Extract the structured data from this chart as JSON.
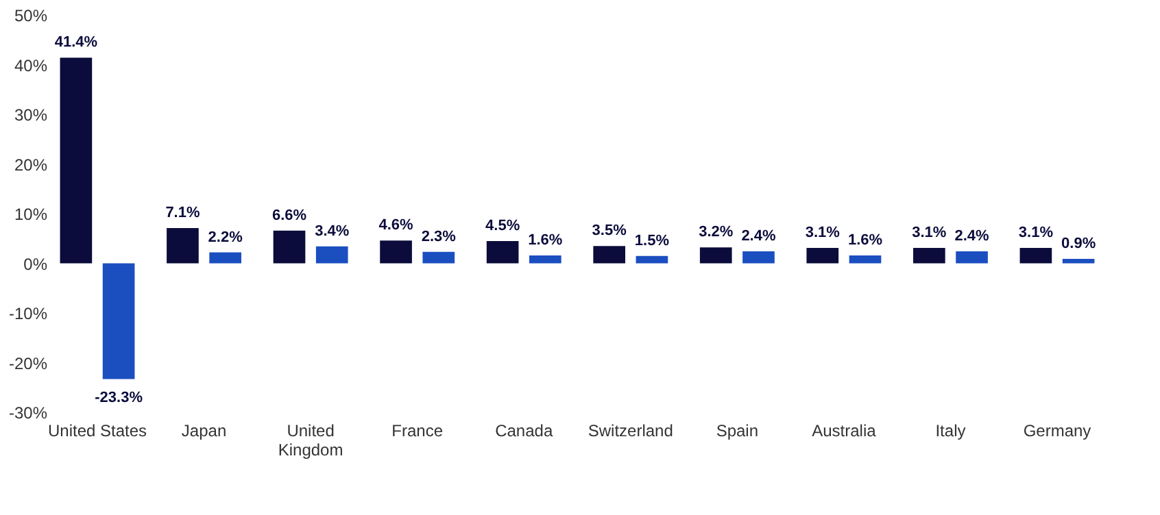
{
  "chart_data": {
    "type": "bar",
    "categories": [
      "United States",
      "Japan",
      "United Kingdom",
      "France",
      "Canada",
      "Switzerland",
      "Spain",
      "Australia",
      "Italy",
      "Germany"
    ],
    "series": [
      {
        "color": "#0b0c3b",
        "values": [
          41.4,
          7.1,
          6.6,
          4.6,
          4.5,
          3.5,
          3.2,
          3.1,
          3.1,
          3.1
        ],
        "value_labels": [
          "41.4%",
          "7.1%",
          "6.6%",
          "4.6%",
          "4.5%",
          "3.5%",
          "3.2%",
          "3.1%",
          "3.1%",
          "3.1%"
        ]
      },
      {
        "color": "#1b4fc0",
        "values": [
          -23.3,
          2.2,
          3.4,
          2.3,
          1.6,
          1.5,
          2.4,
          1.6,
          2.4,
          0.9
        ],
        "value_labels": [
          "-23.3%",
          "2.2%",
          "3.4%",
          "2.3%",
          "1.6%",
          "1.5%",
          "2.4%",
          "1.6%",
          "2.4%",
          "0.9%"
        ]
      }
    ],
    "ylim": [
      -30,
      50
    ],
    "yticks": [
      {
        "value": -30,
        "label": "-30%"
      },
      {
        "value": -20,
        "label": "-20%"
      },
      {
        "value": -10,
        "label": "-10%"
      },
      {
        "value": 0,
        "label": "0%"
      },
      {
        "value": 10,
        "label": "10%"
      },
      {
        "value": 20,
        "label": "20%"
      },
      {
        "value": 30,
        "label": "30%"
      },
      {
        "value": 40,
        "label": "40%"
      },
      {
        "value": 50,
        "label": "50%"
      }
    ],
    "grid": false,
    "legend": false
  }
}
